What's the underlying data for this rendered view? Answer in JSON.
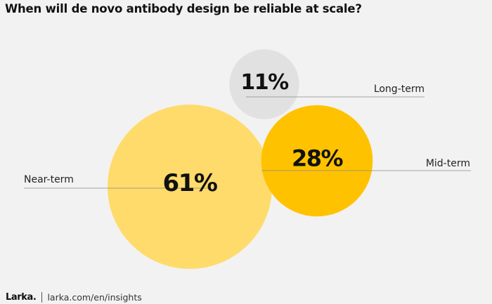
{
  "title": "When will de novo antibody design be reliable at scale?",
  "chart_data": {
    "type": "bubble",
    "title": "When will de novo antibody design be reliable at scale?",
    "unit": "%",
    "series": [
      {
        "label": "Near-term",
        "value": 61,
        "display": "61%",
        "color": "#ffdb6b"
      },
      {
        "label": "Mid-term",
        "value": 28,
        "display": "28%",
        "color": "#ffc200"
      },
      {
        "label": "Long-term",
        "value": 11,
        "display": "11%",
        "color": "#e1e1e1"
      }
    ]
  },
  "footer": {
    "logo": "Larka.",
    "url": "larka.com/en/insights"
  }
}
